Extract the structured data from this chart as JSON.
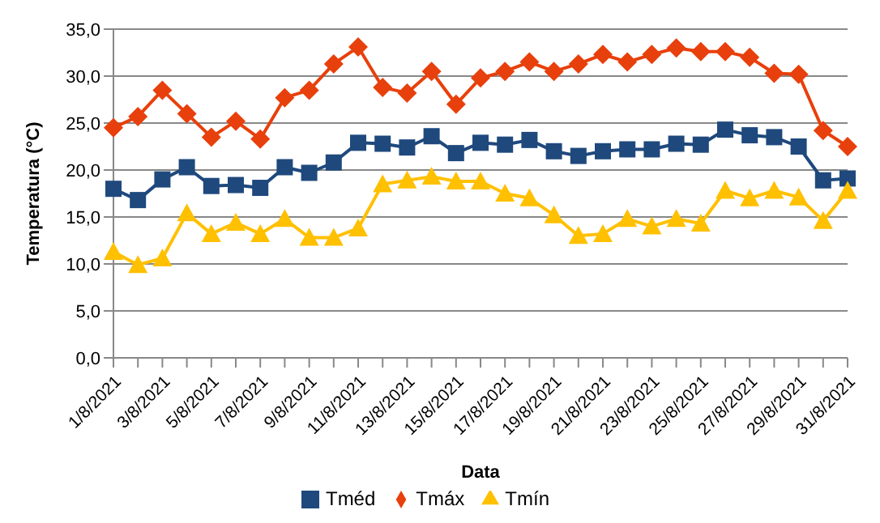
{
  "chart_data": {
    "type": "line",
    "xlabel": "Data",
    "ylabel": "Temperatura (°C)",
    "categories": [
      "1/8/2021",
      null,
      "3/8/2021",
      null,
      "5/8/2021",
      null,
      "7/8/2021",
      null,
      "9/8/2021",
      null,
      "11/8/2021",
      null,
      "13/8/2021",
      null,
      "15/8/2021",
      null,
      "17/8/2021",
      null,
      "19/8/2021",
      null,
      "21/8/2021",
      null,
      "23/8/2021",
      null,
      "25/8/2021",
      null,
      "27/8/2021",
      null,
      "29/8/2021",
      null,
      "31/8/2021"
    ],
    "series": [
      {
        "name": "Tméd",
        "color": "#1f497d",
        "marker": "square",
        "values": [
          18,
          16.8,
          19,
          20.3,
          18.3,
          18.4,
          18.1,
          20.3,
          19.7,
          20.8,
          22.9,
          22.8,
          22.4,
          23.6,
          21.8,
          22.9,
          22.7,
          23.2,
          22,
          21.5,
          22,
          22.2,
          22.2,
          22.8,
          22.7,
          24.3,
          23.7,
          23.5,
          22.5,
          18.9,
          19.1
        ]
      },
      {
        "name": "Tmáx",
        "color": "#e8400c",
        "marker": "diamond",
        "values": [
          24.5,
          25.7,
          28.5,
          26,
          23.5,
          25.2,
          23.3,
          27.7,
          28.5,
          31.3,
          33.1,
          28.8,
          28.2,
          30.5,
          27,
          29.8,
          30.5,
          31.5,
          30.5,
          31.3,
          32.3,
          31.5,
          32.3,
          33,
          32.6,
          32.6,
          32,
          30.3,
          30.2,
          24.2,
          22.5
        ]
      },
      {
        "name": "Tmín",
        "color": "#ffc000",
        "marker": "triangle",
        "values": [
          11.3,
          9.9,
          10.6,
          15.4,
          13.2,
          14.4,
          13.2,
          14.8,
          12.8,
          12.8,
          13.8,
          18.5,
          18.9,
          19.3,
          18.8,
          18.8,
          17.5,
          17,
          15.2,
          13,
          13.2,
          14.8,
          14,
          14.8,
          14.3,
          17.8,
          17,
          17.8,
          17.1,
          14.6,
          17.8
        ]
      }
    ],
    "ylim": [
      0,
      35
    ],
    "yticks": [
      {
        "value": 0,
        "label": "0,0"
      },
      {
        "value": 5,
        "label": "5,0"
      },
      {
        "value": 10,
        "label": "10,0"
      },
      {
        "value": 15,
        "label": "15,0"
      },
      {
        "value": 20,
        "label": "20,0"
      },
      {
        "value": 25,
        "label": "25,0"
      },
      {
        "value": 30,
        "label": "30,0"
      },
      {
        "value": 35,
        "label": "35,0"
      }
    ],
    "grid": "y",
    "legend": "bottom",
    "line_style": "solid"
  }
}
